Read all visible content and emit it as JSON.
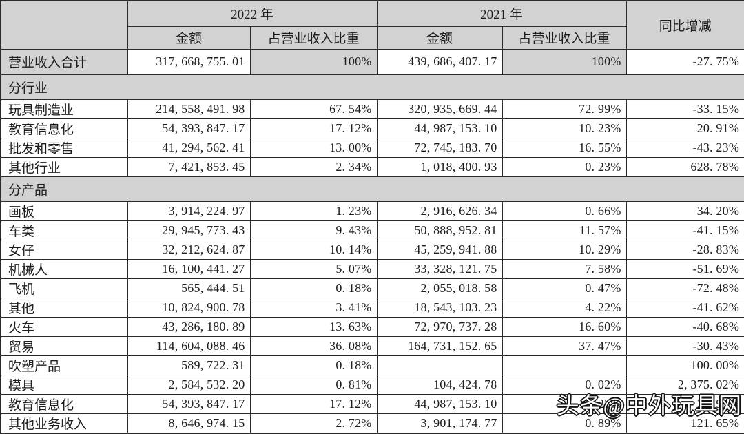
{
  "colors": {
    "header_bg": "#d2d2d2",
    "section_bg": "#d2d2d2",
    "border": "#2b2b2b",
    "cell_bg": "#ffffff",
    "text": "#1e1e1e",
    "watermark_fill": "#ffffff",
    "watermark_outline": "#121212"
  },
  "watermark": {
    "text": "头条@中外玩具网"
  },
  "table": {
    "header": {
      "corner": "",
      "year_2022": "2022 年",
      "year_2021": "2021 年",
      "yoy": "同比增减",
      "amount_2022": "金额",
      "ratio_2022": "占营业收入比重",
      "amount_2021": "金额",
      "ratio_2021": "占营业收入比重"
    },
    "rows": [
      {
        "type": "total",
        "label": "营业收入合计",
        "cells": [
          "317, 668, 755. 01",
          "100%",
          "439, 686, 407. 17",
          "100%",
          "-27. 75%"
        ]
      },
      {
        "type": "section",
        "label": "分行业"
      },
      {
        "type": "data",
        "label": "玩具制造业",
        "cells": [
          "214, 558, 491. 98",
          "67. 54%",
          "320, 935, 669. 44",
          "72. 99%",
          "-33. 15%"
        ]
      },
      {
        "type": "data",
        "label": "教育信息化",
        "cells": [
          "54, 393, 847. 17",
          "17. 12%",
          "44, 987, 153. 10",
          "10. 23%",
          "20. 91%"
        ]
      },
      {
        "type": "data",
        "label": "批发和零售",
        "cells": [
          "41, 294, 562. 41",
          "13. 00%",
          "72, 745, 183. 70",
          "16. 55%",
          "-43. 23%"
        ]
      },
      {
        "type": "data",
        "label": "其他行业",
        "cells": [
          "7, 421, 853. 45",
          "2. 34%",
          "1, 018, 400. 93",
          "0. 23%",
          "628. 78%"
        ]
      },
      {
        "type": "section",
        "label": "分产品"
      },
      {
        "type": "data",
        "label": "画板",
        "cells": [
          "3, 914, 224. 97",
          "1. 23%",
          "2, 916, 626. 34",
          "0. 66%",
          "34. 20%"
        ]
      },
      {
        "type": "data",
        "label": "车类",
        "cells": [
          "29, 945, 773. 43",
          "9. 43%",
          "50, 888, 952. 81",
          "11. 57%",
          "-41. 15%"
        ]
      },
      {
        "type": "data",
        "label": "女仔",
        "cells": [
          "32, 212, 624. 87",
          "10. 14%",
          "45, 259, 941. 88",
          "10. 29%",
          "-28. 83%"
        ]
      },
      {
        "type": "data",
        "label": "机械人",
        "cells": [
          "16, 100, 441. 27",
          "5. 07%",
          "33, 328, 121. 75",
          "7. 58%",
          "-51. 69%"
        ]
      },
      {
        "type": "data",
        "label": "飞机",
        "cells": [
          "565, 444. 51",
          "0. 18%",
          "2, 055, 018. 58",
          "0. 47%",
          "-72. 48%"
        ]
      },
      {
        "type": "data",
        "label": "其他",
        "cells": [
          "10, 824, 900. 78",
          "3. 41%",
          "18, 543, 103. 23",
          "4. 22%",
          "-41. 62%"
        ]
      },
      {
        "type": "data",
        "label": "火车",
        "cells": [
          "43, 286, 180. 89",
          "13. 63%",
          "72, 970, 737. 28",
          "16. 60%",
          "-40. 68%"
        ]
      },
      {
        "type": "data",
        "label": "贸易",
        "cells": [
          "114, 604, 088. 46",
          "36. 08%",
          "164, 731, 152. 65",
          "37. 47%",
          "-30. 43%"
        ]
      },
      {
        "type": "data",
        "label": "吹塑产品",
        "cells": [
          "589, 722. 31",
          "0. 18%",
          "",
          "",
          "100. 00%"
        ]
      },
      {
        "type": "data",
        "label": "模具",
        "cells": [
          "2, 584, 532. 20",
          "0. 81%",
          "104, 424. 78",
          "0. 02%",
          "2, 375. 02%"
        ]
      },
      {
        "type": "data",
        "label": "教育信息化",
        "cells": [
          "54, 393, 847. 17",
          "17. 12%",
          "44, 987, 153. 10",
          "10. 23%",
          "20. 91%"
        ]
      },
      {
        "type": "data",
        "label": "其他业务收入",
        "cells": [
          "8, 646, 974. 15",
          "2. 72%",
          "3, 901, 174. 77",
          "0. 89%",
          "121. 65%"
        ]
      }
    ]
  }
}
